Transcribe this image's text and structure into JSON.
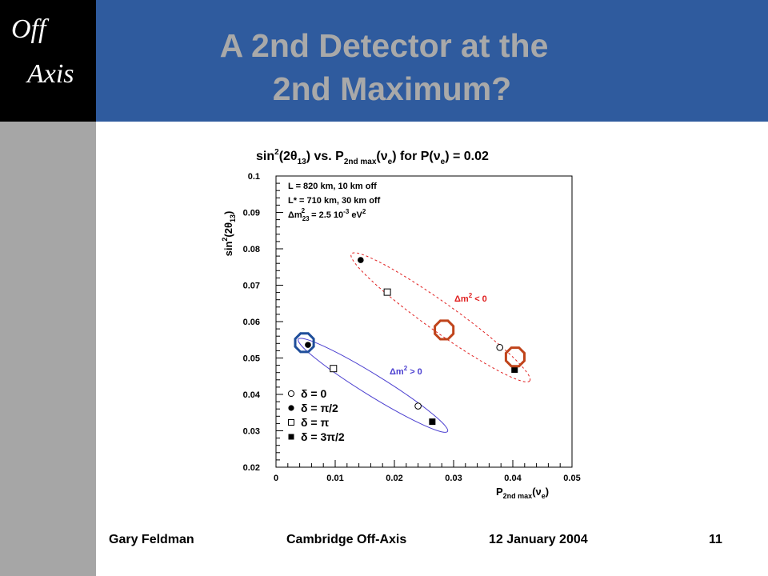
{
  "slide": {
    "logo_line1": "Off",
    "logo_line2": "Axis",
    "title_line1": "A 2nd Detector at the",
    "title_line2": "2nd Maximum?",
    "footer_author": "Gary Feldman",
    "footer_event": "Cambridge Off-Axis",
    "footer_date": "12 January 2004",
    "page_number": "11",
    "colors": {
      "title_bar": "#2f5b9e",
      "title_text": "#a9a9a9",
      "logo_box": "#000000",
      "side_bar": "#a6a6a6"
    }
  },
  "chart_data": {
    "type": "scatter",
    "title": "sin²(2θ₁₃) vs. P₂ₙd ₘₐₓ(νₑ) for P(νₑ) = 0.02",
    "xlabel": "P₂ₙd ₘₐₓ(νₑ)",
    "ylabel": "sin²(2θ₁₃)",
    "xlim": [
      0,
      0.05
    ],
    "ylim": [
      0.02,
      0.1
    ],
    "x_ticks": [
      "0",
      "0.01",
      "0.02",
      "0.03",
      "0.04",
      "0.05"
    ],
    "y_ticks": [
      "0.02",
      "0.03",
      "0.04",
      "0.05",
      "0.06",
      "0.07",
      "0.08",
      "0.09",
      "0.1"
    ],
    "x_tick_values": [
      0,
      0.01,
      0.02,
      0.03,
      0.04,
      0.05
    ],
    "y_tick_values": [
      0.02,
      0.03,
      0.04,
      0.05,
      0.06,
      0.07,
      0.08,
      0.09,
      0.1
    ],
    "parameters": [
      "L = 820 km, 10 km off",
      "L* = 710 km, 30 km off",
      "Δm₂₃² = 2.5 10⁻³ eV²"
    ],
    "legend": [
      {
        "marker": "open-circle",
        "label": "δ = 0"
      },
      {
        "marker": "filled-circle",
        "label": "δ = π/2"
      },
      {
        "marker": "open-square",
        "label": "δ = π"
      },
      {
        "marker": "filled-square",
        "label": "δ = 3π/2"
      }
    ],
    "legend_position": "bottom-left",
    "series": [
      {
        "name": "Δm² > 0",
        "color": "#4b3fd0",
        "line_style": "solid",
        "points": [
          {
            "delta": "0",
            "marker": "open-circle",
            "x": 0.024,
            "y": 0.0368
          },
          {
            "delta": "π/2",
            "marker": "filled-circle",
            "x": 0.0054,
            "y": 0.0536
          },
          {
            "delta": "π",
            "marker": "open-square",
            "x": 0.0097,
            "y": 0.0471
          },
          {
            "delta": "3π/2",
            "marker": "filled-square",
            "x": 0.0264,
            "y": 0.0325
          }
        ]
      },
      {
        "name": "Δm² < 0",
        "color": "#e02020",
        "line_style": "dashed",
        "points": [
          {
            "delta": "0",
            "marker": "open-circle",
            "x": 0.0378,
            "y": 0.0529
          },
          {
            "delta": "π/2",
            "marker": "filled-circle",
            "x": 0.0143,
            "y": 0.0769
          },
          {
            "delta": "π",
            "marker": "open-square",
            "x": 0.0188,
            "y": 0.0681
          },
          {
            "delta": "3π/2",
            "marker": "filled-square",
            "x": 0.0403,
            "y": 0.0468
          }
        ]
      }
    ],
    "highlight_markers": [
      {
        "color": "#1f4e9a",
        "x": 0.0048,
        "y": 0.0542
      },
      {
        "color": "#c0441b",
        "x": 0.0284,
        "y": 0.0577
      },
      {
        "color": "#c0441b",
        "x": 0.0404,
        "y": 0.0503
      }
    ],
    "grid": false
  }
}
